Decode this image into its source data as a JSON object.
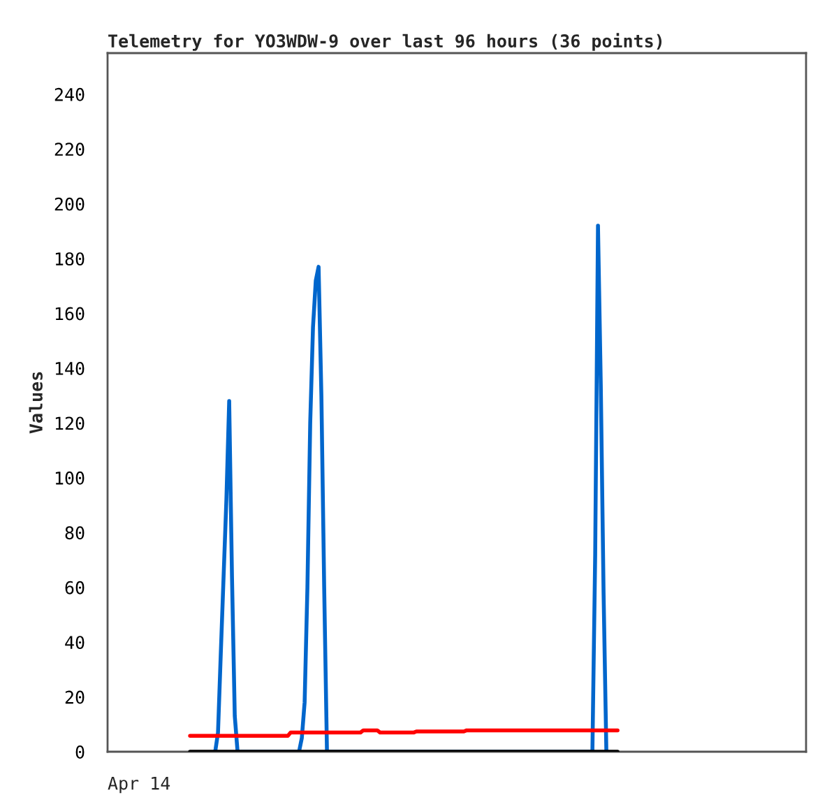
{
  "chart_data": {
    "type": "line",
    "title": "Telemetry for YO3WDW-9 over last 96 hours (36 points)",
    "ylabel": "Values",
    "annotations": [
      "Apr 14"
    ],
    "categories": [
      null,
      null,
      null,
      null,
      null,
      null,
      null,
      null,
      null,
      null,
      null,
      null,
      null,
      null,
      null,
      null,
      null,
      null,
      null,
      null,
      null,
      null,
      null,
      null,
      null,
      null,
      null,
      null,
      null,
      null,
      null,
      null,
      null,
      null,
      null,
      null,
      null,
      null,
      null,
      null,
      null,
      null,
      null,
      null,
      null,
      null,
      null,
      null,
      null,
      null,
      null,
      null,
      null,
      null,
      null,
      null,
      null,
      null,
      null,
      null,
      null,
      null,
      null,
      null,
      null,
      null,
      null,
      null,
      null,
      null,
      null,
      null,
      null,
      null,
      null,
      null,
      null,
      null,
      null,
      null,
      null,
      null,
      null,
      null,
      null,
      null,
      null,
      null,
      null,
      null,
      null,
      null,
      null,
      null,
      null,
      null,
      null,
      null,
      null,
      null,
      null,
      null,
      null,
      null,
      null,
      null,
      null,
      null,
      null,
      null,
      null,
      null,
      null,
      null,
      null,
      null,
      null,
      null,
      null,
      null,
      null,
      null,
      null,
      null,
      null,
      null,
      null,
      null,
      null,
      null,
      null,
      null,
      null,
      null,
      null,
      null,
      null,
      null,
      null,
      null,
      null,
      null,
      null,
      null,
      null,
      null,
      null,
      null,
      null,
      null,
      null,
      null,
      null,
      null
    ],
    "ylim": [
      0,
      255
    ],
    "yticks": [
      0,
      20,
      40,
      60,
      80,
      100,
      120,
      140,
      160,
      180,
      200,
      220,
      240
    ],
    "grid": false,
    "legend": false,
    "marker": "none",
    "line_style": "solid",
    "series": [
      {
        "color": "#000000",
        "values": [
          0,
          0,
          0,
          0,
          0,
          0,
          0,
          0,
          0,
          0,
          0,
          0,
          0,
          0,
          0,
          0,
          0,
          0,
          0,
          0,
          0,
          0,
          0,
          0,
          0,
          0,
          0,
          0,
          0,
          0,
          0,
          0,
          0,
          0,
          0,
          0,
          0,
          0,
          0,
          0,
          0,
          0,
          0,
          0,
          0,
          0,
          0,
          0,
          0,
          0,
          0,
          0,
          0,
          0,
          0,
          0,
          0,
          0,
          0,
          0,
          0,
          0,
          0,
          0,
          0,
          0,
          0,
          0,
          0,
          0,
          0,
          0,
          0,
          0,
          0,
          0,
          0,
          0,
          0,
          0,
          0,
          0,
          0,
          0,
          0,
          0,
          0,
          0,
          0,
          0,
          0,
          0,
          0,
          0,
          0,
          0,
          0,
          0,
          0,
          0,
          0,
          0,
          0,
          0,
          0,
          0,
          0,
          0,
          0,
          0,
          0,
          0,
          0,
          0,
          0,
          0,
          0,
          0,
          0,
          0,
          0,
          0,
          0,
          0,
          0,
          0,
          0,
          0,
          0,
          0,
          0,
          0,
          0,
          0,
          0,
          0,
          0,
          0,
          0,
          0,
          0,
          0,
          0,
          0,
          0,
          0,
          0,
          0,
          0,
          0,
          0,
          0,
          0,
          0
        ]
      },
      {
        "color": "#ff0000",
        "values": [
          5.8,
          5.8,
          5.8,
          5.8,
          5.8,
          5.8,
          5.8,
          5.8,
          5.8,
          5.8,
          5.8,
          5.8,
          5.8,
          5.8,
          5.8,
          5.8,
          5.8,
          5.8,
          5.8,
          5.8,
          5.8,
          5.8,
          5.8,
          5.8,
          5.8,
          5.8,
          5.8,
          5.8,
          5.8,
          5.8,
          5.8,
          5.8,
          5.8,
          5.8,
          5.8,
          5.8,
          7,
          7,
          7,
          7,
          7,
          7,
          7,
          7,
          7,
          7,
          7,
          7,
          7,
          7,
          7,
          7,
          7,
          7,
          7,
          7,
          7,
          7,
          7,
          7,
          7,
          7,
          7.8,
          7.8,
          7.8,
          7.8,
          7.8,
          7.8,
          7,
          7,
          7,
          7,
          7,
          7,
          7,
          7,
          7,
          7,
          7,
          7,
          7,
          7.4,
          7.4,
          7.4,
          7.4,
          7.4,
          7.4,
          7.4,
          7.4,
          7.4,
          7.4,
          7.4,
          7.4,
          7.4,
          7.4,
          7.4,
          7.4,
          7.4,
          7.4,
          7.8,
          7.8,
          7.8,
          7.8,
          7.8,
          7.8,
          7.8,
          7.8,
          7.8,
          7.8,
          7.8,
          7.8,
          7.8,
          7.8,
          7.8,
          7.8,
          7.8,
          7.8,
          7.8,
          7.8,
          7.8,
          7.8,
          7.8,
          7.8,
          7.8,
          7.8,
          7.8,
          7.8,
          7.8,
          7.8,
          7.8,
          7.8,
          7.8,
          7.8,
          7.8,
          7.8,
          7.8,
          7.8,
          7.8,
          7.8,
          7.8,
          7.8,
          7.8,
          7.8,
          7.8,
          7.8,
          7.8,
          7.8,
          7.8,
          7.8,
          7.8,
          7.8,
          7.8,
          7.8,
          7.8
        ]
      },
      {
        "color": "#0066cc",
        "values": [
          null,
          null,
          null,
          null,
          null,
          null,
          null,
          null,
          null,
          0,
          7,
          36,
          64,
          92,
          128,
          64,
          13,
          0,
          null,
          null,
          null,
          null,
          null,
          null,
          null,
          null,
          null,
          null,
          null,
          null,
          null,
          null,
          null,
          null,
          null,
          null,
          null,
          null,
          null,
          0,
          5,
          18,
          60,
          120,
          155,
          172,
          177,
          130,
          60,
          0,
          null,
          null,
          null,
          null,
          null,
          null,
          null,
          null,
          null,
          null,
          null,
          null,
          null,
          null,
          null,
          null,
          null,
          null,
          null,
          null,
          null,
          null,
          null,
          null,
          null,
          null,
          null,
          null,
          null,
          null,
          null,
          null,
          null,
          null,
          null,
          null,
          null,
          null,
          null,
          null,
          null,
          null,
          null,
          null,
          null,
          null,
          null,
          null,
          null,
          null,
          null,
          null,
          null,
          null,
          null,
          null,
          null,
          null,
          null,
          null,
          null,
          null,
          null,
          null,
          null,
          null,
          null,
          null,
          null,
          null,
          null,
          null,
          null,
          null,
          null,
          null,
          null,
          null,
          null,
          null,
          null,
          null,
          null,
          null,
          null,
          null,
          null,
          null,
          null,
          null,
          null,
          null,
          null,
          null,
          0,
          72,
          192,
          134,
          58,
          0,
          null,
          null,
          null,
          null
        ]
      }
    ]
  }
}
